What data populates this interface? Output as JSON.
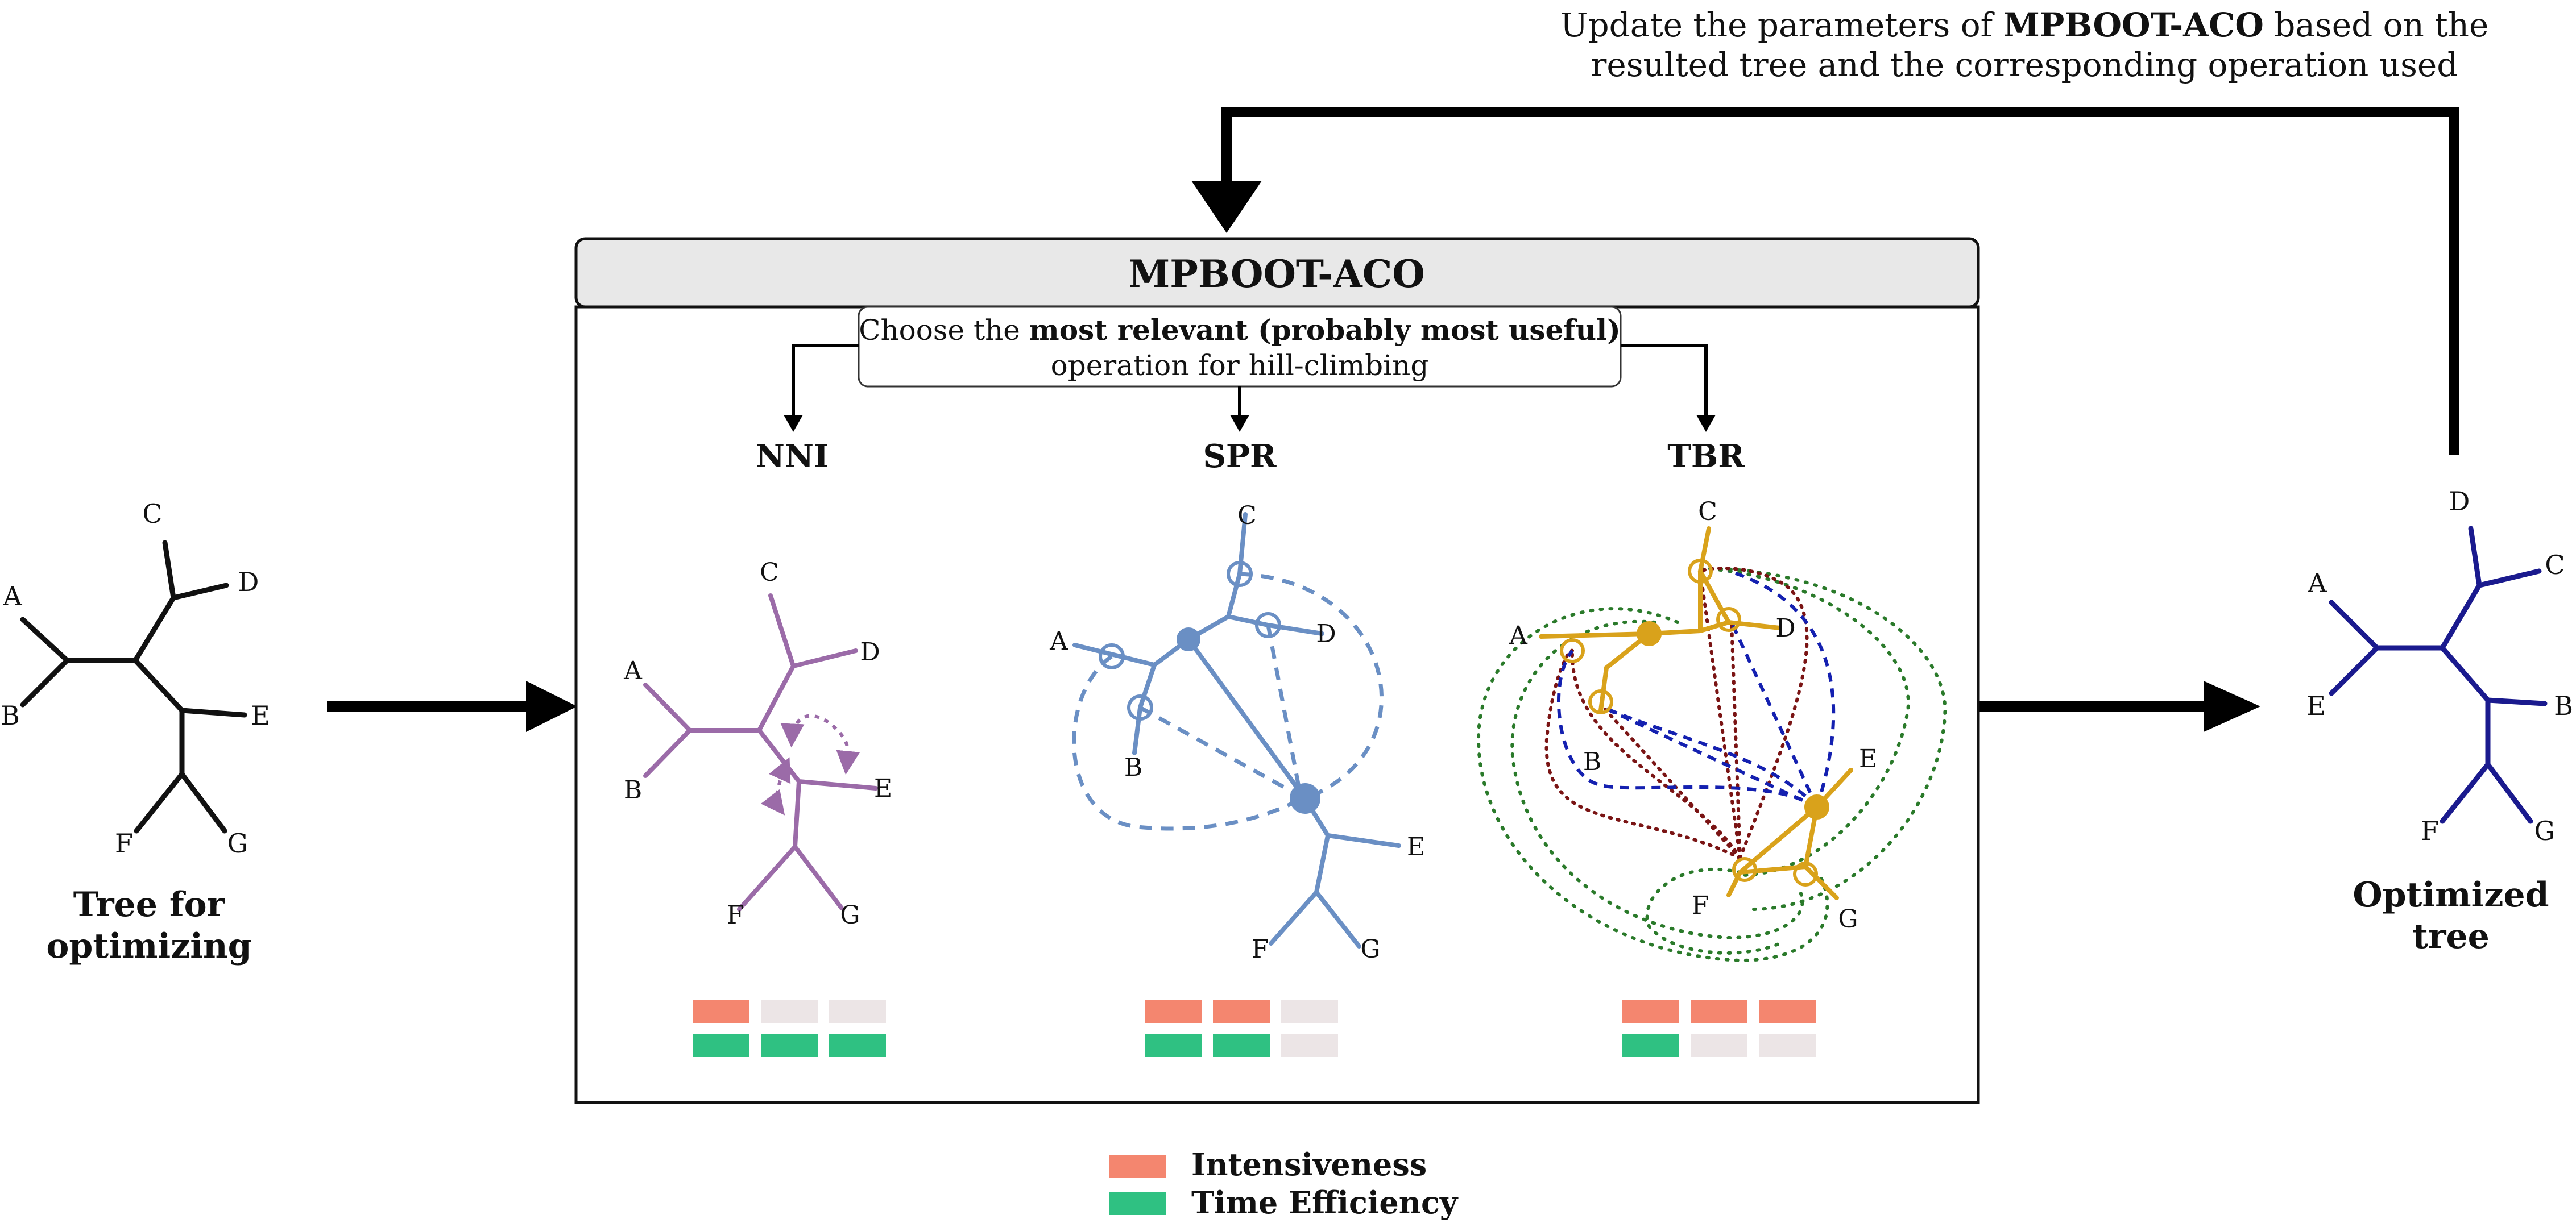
{
  "feedback": {
    "line1_pre": "Update the parameters of ",
    "line1_bold": "MPBOOT-ACO",
    "line1_post": " based on the",
    "line2": "resulted tree and the corresponding operation used"
  },
  "panel": {
    "title": "MPBOOT-ACO",
    "choose_pre": "Choose the ",
    "choose_bold": "most relevant (probably most useful)",
    "choose_line2": "operation for hill-climbing"
  },
  "input_tree": {
    "caption_line1": "Tree for",
    "caption_line2": "optimizing",
    "leaves": [
      "A",
      "B",
      "C",
      "D",
      "E",
      "F",
      "G"
    ]
  },
  "output_tree": {
    "caption_line1": "Optimized",
    "caption_line2": "tree",
    "leaves": [
      "A",
      "E",
      "D",
      "C",
      "B",
      "F",
      "G"
    ]
  },
  "operations": [
    {
      "name": "NNI",
      "color": "#9b6ba8",
      "intensiveness": 1,
      "time_efficiency": 3,
      "leaves": [
        "A",
        "B",
        "C",
        "D",
        "E",
        "F",
        "G"
      ]
    },
    {
      "name": "SPR",
      "color": "#6a8fc4",
      "intensiveness": 2,
      "time_efficiency": 2,
      "leaves": [
        "A",
        "B",
        "C",
        "D",
        "E",
        "F",
        "G"
      ]
    },
    {
      "name": "TBR",
      "color": "#d9a21b",
      "intensiveness": 3,
      "time_efficiency": 1,
      "leaves": [
        "A",
        "B",
        "C",
        "D",
        "E",
        "F",
        "G"
      ]
    }
  ],
  "legend": {
    "intensiveness_label": "Intensiveness",
    "time_efficiency_label": "Time Efficiency",
    "intensiveness_color": "#f4866f",
    "time_efficiency_color": "#2fc182",
    "empty_color": "#ece5e6"
  }
}
